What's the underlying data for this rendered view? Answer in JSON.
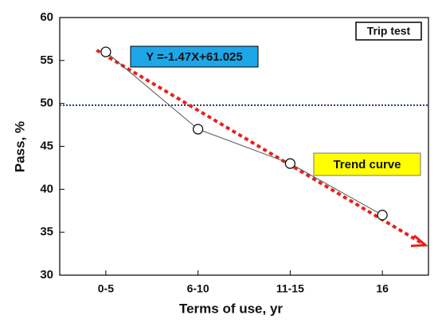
{
  "chart_data": {
    "type": "line",
    "x_label": "Terms of use, yr",
    "y_label": "Pass, %",
    "categories": [
      "0-5",
      "6-10",
      "11-15",
      "16"
    ],
    "values": [
      56,
      47,
      43,
      37
    ],
    "color": "#555555",
    "ylim": [
      30,
      60
    ],
    "yticks": [
      30,
      35,
      40,
      45,
      50,
      55,
      60
    ],
    "reference_line": {
      "value": 49.8,
      "color": "#1a3a6e"
    },
    "trend": {
      "values": [
        56.2,
        33.5
      ],
      "color": "#e8201a"
    },
    "annotations": {
      "equation": "Y =-1.47X+61.025",
      "trend_label": "Trend curve",
      "legend_text": "Trip test"
    }
  }
}
